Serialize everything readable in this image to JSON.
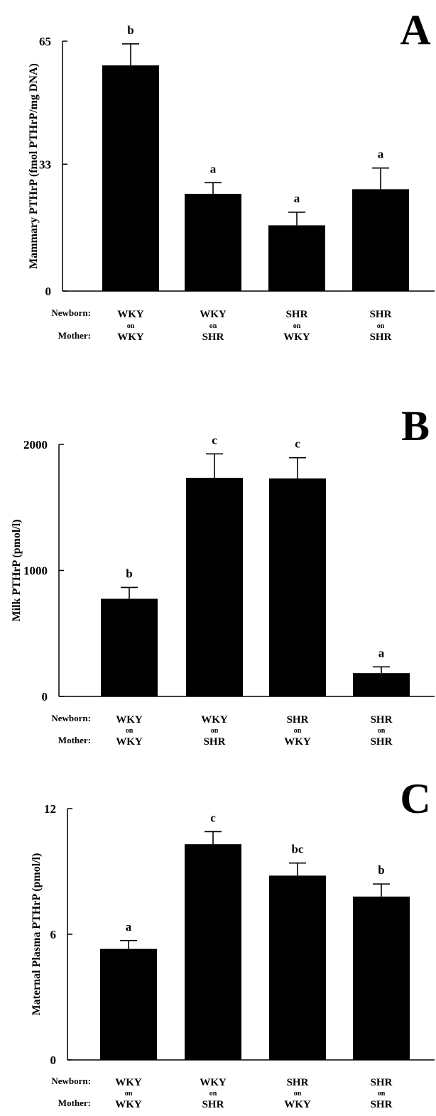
{
  "row_labels": {
    "newborn": "Newborn:",
    "mother": "Mother:",
    "on": "on"
  },
  "chart_data": [
    {
      "type": "bar",
      "panel_letter": "A",
      "ylabel": "Mammary PTHrP (fmol PTHrP/mg DNA)",
      "yticks": [
        0,
        33,
        65
      ],
      "ylim": [
        0,
        65
      ],
      "categories": [
        {
          "newborn": "WKY",
          "mother": "WKY"
        },
        {
          "newborn": "WKY",
          "mother": "SHR"
        },
        {
          "newborn": "SHR",
          "mother": "WKY"
        },
        {
          "newborn": "SHR",
          "mother": "SHR"
        }
      ],
      "values": [
        58.7,
        25.3,
        17.1,
        26.5
      ],
      "errors": [
        5.6,
        2.9,
        3.4,
        5.5
      ],
      "significance": [
        "b",
        "a",
        "a",
        "a"
      ]
    },
    {
      "type": "bar",
      "panel_letter": "B",
      "ylabel": "Milk PTHrP (pmol/l)",
      "yticks": [
        0,
        1000,
        2000
      ],
      "ylim": [
        0,
        2000
      ],
      "categories": [
        {
          "newborn": "WKY",
          "mother": "WKY"
        },
        {
          "newborn": "WKY",
          "mother": "SHR"
        },
        {
          "newborn": "SHR",
          "mother": "WKY"
        },
        {
          "newborn": "SHR",
          "mother": "SHR"
        }
      ],
      "values": [
        775,
        1735,
        1730,
        185
      ],
      "errors": [
        90,
        190,
        165,
        50
      ],
      "significance": [
        "b",
        "c",
        "c",
        "a"
      ]
    },
    {
      "type": "bar",
      "panel_letter": "C",
      "ylabel": "Maternal Plasma PTHrP (pmol/l)",
      "yticks": [
        0,
        6,
        12
      ],
      "ylim": [
        0,
        12
      ],
      "categories": [
        {
          "newborn": "WKY",
          "mother": "WKY"
        },
        {
          "newborn": "WKY",
          "mother": "SHR"
        },
        {
          "newborn": "SHR",
          "mother": "WKY"
        },
        {
          "newborn": "SHR",
          "mother": "SHR"
        }
      ],
      "values": [
        5.3,
        10.3,
        8.8,
        7.8
      ],
      "errors": [
        0.4,
        0.6,
        0.6,
        0.6
      ],
      "significance": [
        "a",
        "c",
        "bc",
        "b"
      ]
    }
  ]
}
